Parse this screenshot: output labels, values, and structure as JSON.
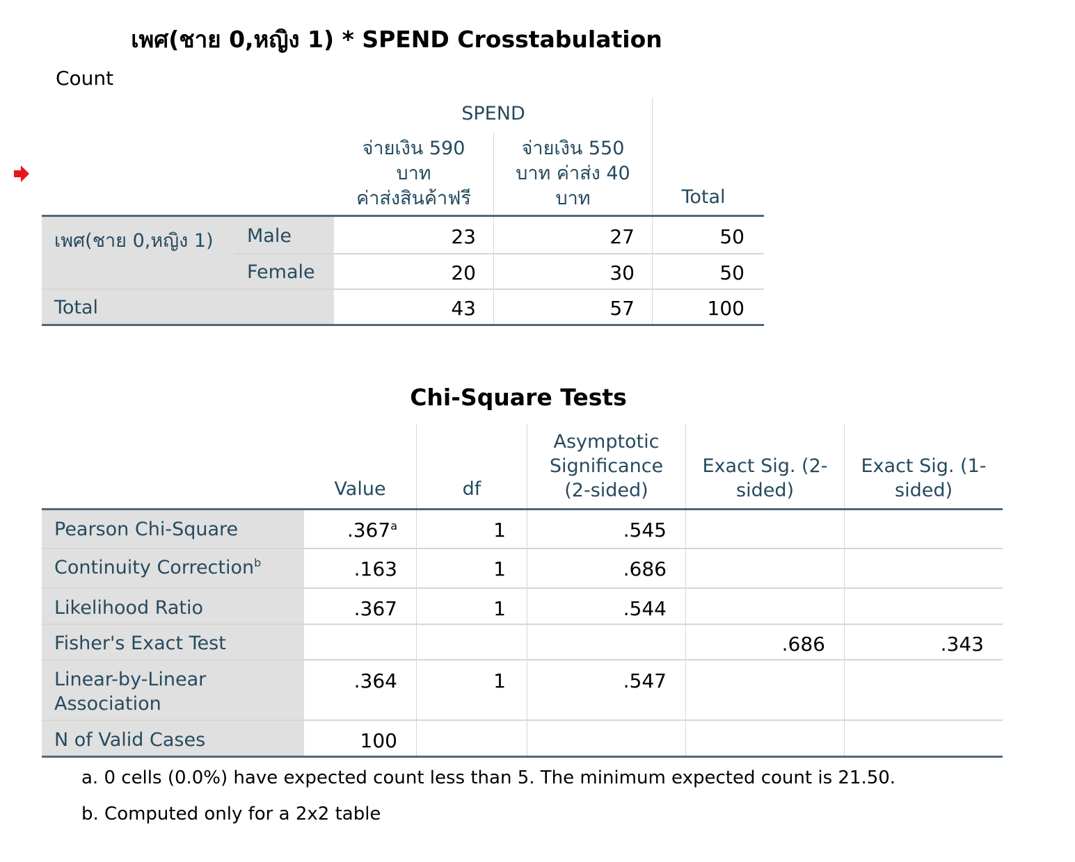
{
  "crosstab": {
    "title": "เพศ(ชาย 0,หญิง 1) * SPEND Crosstabulation",
    "subtitle": "Count",
    "spend_header": "SPEND",
    "col1": [
      "จ่ายเงิน 590",
      "บาท",
      "ค่าส่งสินค้าฟรี"
    ],
    "col2": [
      "จ่ายเงิน 550",
      "บาท ค่าส่ง 40",
      "บาท"
    ],
    "col_total": "Total",
    "row_var": "เพศ(ชาย 0,หญิง 1)",
    "rows": [
      {
        "label": "Male",
        "v1": "23",
        "v2": "27",
        "total": "50"
      },
      {
        "label": "Female",
        "v1": "20",
        "v2": "30",
        "total": "50"
      }
    ],
    "total_row": {
      "label": "Total",
      "v1": "43",
      "v2": "57",
      "total": "100"
    }
  },
  "chisq": {
    "title": "Chi-Square Tests",
    "headers": {
      "value": "Value",
      "df": "df",
      "asym": [
        "Asymptotic",
        "Significance",
        "(2-sided)"
      ],
      "exact2": [
        "Exact Sig. (2-",
        "sided)"
      ],
      "exact1": [
        "Exact Sig. (1-",
        "sided)"
      ]
    },
    "rows": [
      {
        "label": "Pearson Chi-Square",
        "sup": "",
        "value": ".367",
        "value_sup": "a",
        "df": "1",
        "asym": ".545",
        "exact2": "",
        "exact1": ""
      },
      {
        "label": "Continuity Correction",
        "sup": "b",
        "value": ".163",
        "value_sup": "",
        "df": "1",
        "asym": ".686",
        "exact2": "",
        "exact1": ""
      },
      {
        "label": "Likelihood Ratio",
        "sup": "",
        "value": ".367",
        "value_sup": "",
        "df": "1",
        "asym": ".544",
        "exact2": "",
        "exact1": ""
      },
      {
        "label": "Fisher's Exact Test",
        "sup": "",
        "value": "",
        "value_sup": "",
        "df": "",
        "asym": "",
        "exact2": ".686",
        "exact1": ".343"
      },
      {
        "label": [
          "Linear-by-Linear",
          "Association"
        ],
        "sup": "",
        "value": ".364",
        "value_sup": "",
        "df": "1",
        "asym": ".547",
        "exact2": "",
        "exact1": ""
      },
      {
        "label": "N of Valid Cases",
        "sup": "",
        "value": "100",
        "value_sup": "",
        "df": "",
        "asym": "",
        "exact2": "",
        "exact1": ""
      }
    ],
    "footnotes": [
      "a. 0 cells (0.0%) have expected count less than 5. The minimum expected count is 21.50.",
      "b. Computed only for a 2x2 table"
    ]
  },
  "colors": {
    "header_text": "#264a60",
    "row_shade": "#e0e0e0",
    "rule": "#52667a",
    "marker": "#e8141e"
  },
  "icons": {
    "marker": "red-arrow-icon"
  }
}
